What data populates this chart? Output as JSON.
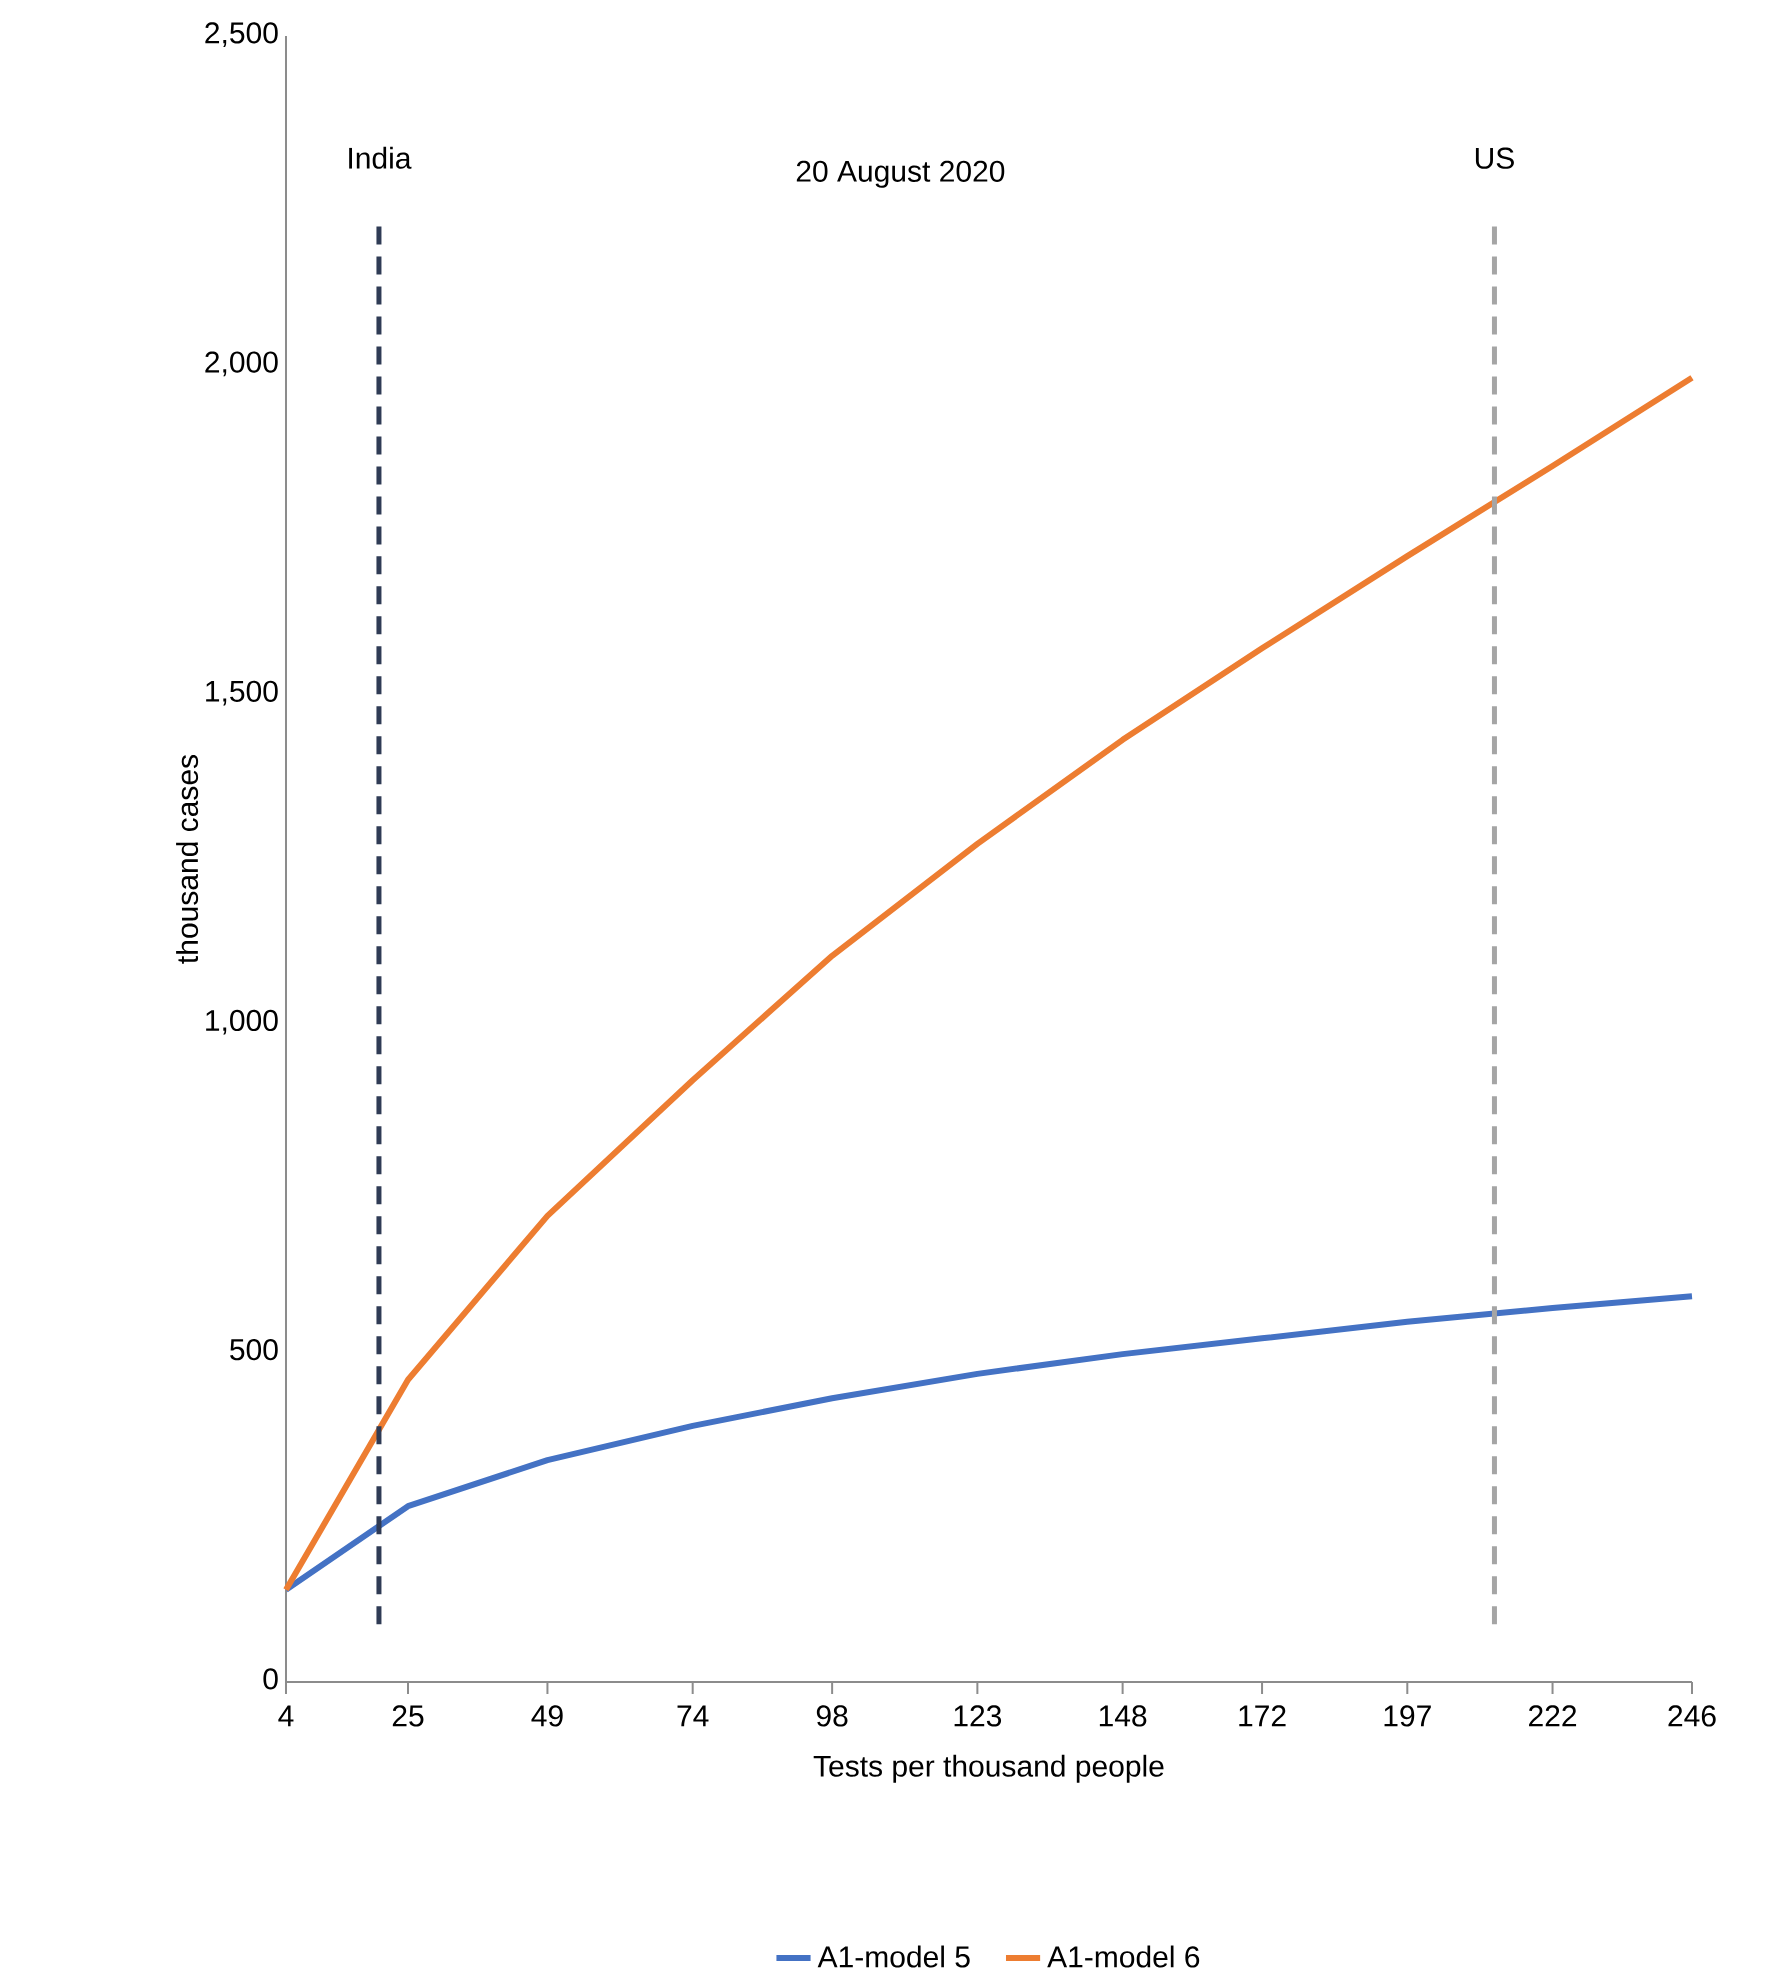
{
  "chart_data": {
    "type": "line",
    "xlabel": "Tests per thousand people",
    "ylabel": "thousand  cases",
    "x": [
      4,
      25,
      49,
      74,
      98,
      123,
      148,
      172,
      197,
      222,
      246
    ],
    "xlim": [
      4,
      246
    ],
    "xticks": [
      4,
      25,
      49,
      74,
      98,
      123,
      148,
      172,
      197,
      222,
      246
    ],
    "ylim": [
      0,
      2500
    ],
    "yticks": [
      0,
      {
        "value": 500,
        "label": "500"
      },
      {
        "value": 1000,
        "label": "1,000"
      },
      {
        "value": 1500,
        "label": "1,500"
      },
      {
        "value": 2000,
        "label": "2,000"
      },
      {
        "value": 2500,
        "label": "2,500"
      }
    ],
    "series": [
      {
        "name": "A1-model 5",
        "color": "#4472c4",
        "values": [
          140,
          267,
          337,
          389,
          431,
          468,
          498,
          522,
          547,
          568,
          586
        ]
      },
      {
        "name": "A1-model 6",
        "color": "#ed7d31",
        "values": [
          140,
          459,
          708,
          914,
          1103,
          1273,
          1431,
          1570,
          1710,
          1847,
          1981
        ]
      }
    ],
    "ref_lines": [
      {
        "axis": "x",
        "value": 20,
        "label": "India",
        "color": "#2f3b55",
        "line_style": "dashed"
      },
      {
        "axis": "x",
        "value": 212,
        "label": "US",
        "color": "#a5a5a5",
        "line_style": "dashed"
      }
    ],
    "annotations": [
      "20 August 2020"
    ],
    "legend": "bottom",
    "grid": false,
    "marker": "none",
    "line_style": "solid"
  }
}
